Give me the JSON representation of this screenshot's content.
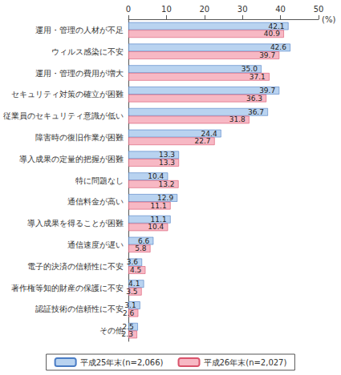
{
  "chart_data": {
    "type": "bar",
    "orientation": "horizontal",
    "xlabel": "(%)",
    "categories": [
      "運用・管理の人材が不足",
      "ウィルス感染に不安",
      "運用・管理の費用が増大",
      "セキュリティ対策の確立が困難",
      "従業員のセキュリティ意識が低い",
      "障害時の復旧作業が困難",
      "導入成果の定量的把握が困難",
      "特に問題なし",
      "通信料金が高い",
      "導入成果を得ることが困難",
      "通信速度が遅い",
      "電子的決済の信頼性に不安",
      "著作権等知的財産の保護に不安",
      "認証技術の信頼性に不安",
      "その他"
    ],
    "series": [
      {
        "name": "平成25年末(n=2,066)",
        "color": "#b9d3f0",
        "values": [
          42.1,
          42.6,
          35.0,
          39.7,
          36.7,
          24.4,
          13.3,
          10.4,
          12.9,
          11.1,
          6.6,
          3.6,
          4.1,
          3.1,
          2.5
        ],
        "value_labels": [
          "42.1",
          "42.6",
          "35.0",
          "39.7",
          "36.7",
          "24.4",
          "13.3",
          "10.4",
          "12.9",
          "11.1",
          "6.6",
          "3.6",
          "4.1",
          "3.1",
          "2.5"
        ]
      },
      {
        "name": "平成26年末(n=2,027)",
        "color": "#f7b8c4",
        "values": [
          40.9,
          39.7,
          37.1,
          36.3,
          31.8,
          22.7,
          13.3,
          13.2,
          11.1,
          10.4,
          5.8,
          4.5,
          3.5,
          2.6,
          2.3
        ],
        "value_labels": [
          "40.9",
          "39.7",
          "37.1",
          "36.3",
          "31.8",
          "22.7",
          "13.3",
          "13.2",
          "11.1",
          "10.4",
          "5.8",
          "4.5",
          "3.5",
          "2.6",
          "2.3"
        ]
      }
    ],
    "xlim": [
      0,
      50
    ],
    "xticks": [
      0,
      10,
      20,
      30,
      40,
      50
    ],
    "grid": false,
    "legend": "bottom",
    "data_labels": true
  }
}
